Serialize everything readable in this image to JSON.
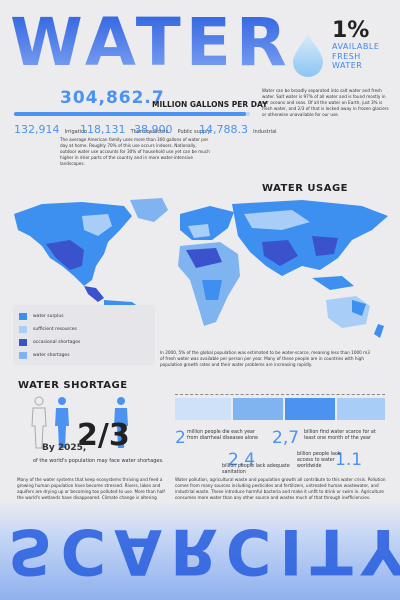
{
  "header": {
    "title": "WATER",
    "fresh_pct": "1%",
    "fresh_line1": "AVAILABLE",
    "fresh_line2": "FRESH",
    "fresh_line3": "WATER"
  },
  "usage": {
    "total": "304,862.7",
    "unit": "MILLION GALLONS PER DAY",
    "stats": [
      {
        "value": "132,914",
        "label": "Irrigation"
      },
      {
        "value": "118,131",
        "label": "Thermoelectric"
      },
      {
        "value": "38,900",
        "label": "Public supply"
      },
      {
        "value": "14,788.3",
        "label": "Industrial"
      }
    ],
    "intro_right": "Water can be broadly separated into salt water and fresh water. Salt water is 97% of all water and is found mostly in our oceans and seas. Of all the water on Earth, just 3% is fresh water, and 2/3 of that is locked away in frozen glaciers or otherwise unavailable for our use.",
    "intro_left": "The average American family uses more than 300 gallons of water per day at home. Roughly 70% of this use occurs indoors. Nationally, outdoor water use accounts for 30% of household use yet can be much higher in drier parts of the country and in more water-intensive landscapes."
  },
  "map": {
    "heading": "WATER USAGE",
    "legend": [
      {
        "label": "water surplus",
        "color": "#3d8ff0"
      },
      {
        "label": "sufficient resources",
        "color": "#a8cdf6"
      },
      {
        "label": "occasional shortages",
        "color": "#3a53cc"
      },
      {
        "label": "water shortages",
        "color": "#7fb4f1"
      }
    ],
    "caption": "In 2000, 5% of the global population was estimated to be water-scarce, meaning less than 1000 m3 of fresh water was available per person per year. Many of these people are in countries with high population growth rates and their water problems are increasing rapidly."
  },
  "shortage": {
    "heading": "WATER SHORTAGE",
    "fraction": "2/3",
    "by_year": "By 2025,",
    "world_pop": "of the world's population may face water shortages.",
    "stats": [
      {
        "num": "2",
        "label": "million people die each year from diarrheal diseases alone"
      },
      {
        "num": "2,7",
        "label": "billion find water scarce for at least one month of the year"
      },
      {
        "num": "2.4",
        "label": "billion people lack adequate sanitation"
      },
      {
        "num": "1.1",
        "label": "billion people lack access to water worldwide"
      }
    ],
    "text_left": "Many of the water systems that keep ecosystems thriving and feed a growing human population have become stressed. Rivers, lakes and aquifers are drying up or becoming too polluted to use. More than half the world's wetlands have disappeared. Climate change is altering patterns of weather and water around the world, causing shortages and droughts in some areas and floods in others.",
    "text_right": "Water pollution, agricultural waste and population growth all contribute to this water crisis. Pollution comes from many sources including pesticides and fertilizers, untreated human wastewater, and industrial waste. These introduce harmful bacteria and make it unfit to drink or swim in. Agriculture consumes more water than any other source and wastes much of that through inefficiencies. Furthermore, in the last 50 years, the human population has more than doubled. These new faces also need food, shelter, and clothing, thus resulting in additional pressure on freshwater through the production of commodities and energy."
  },
  "footer": {
    "word": "SCARCITY"
  }
}
